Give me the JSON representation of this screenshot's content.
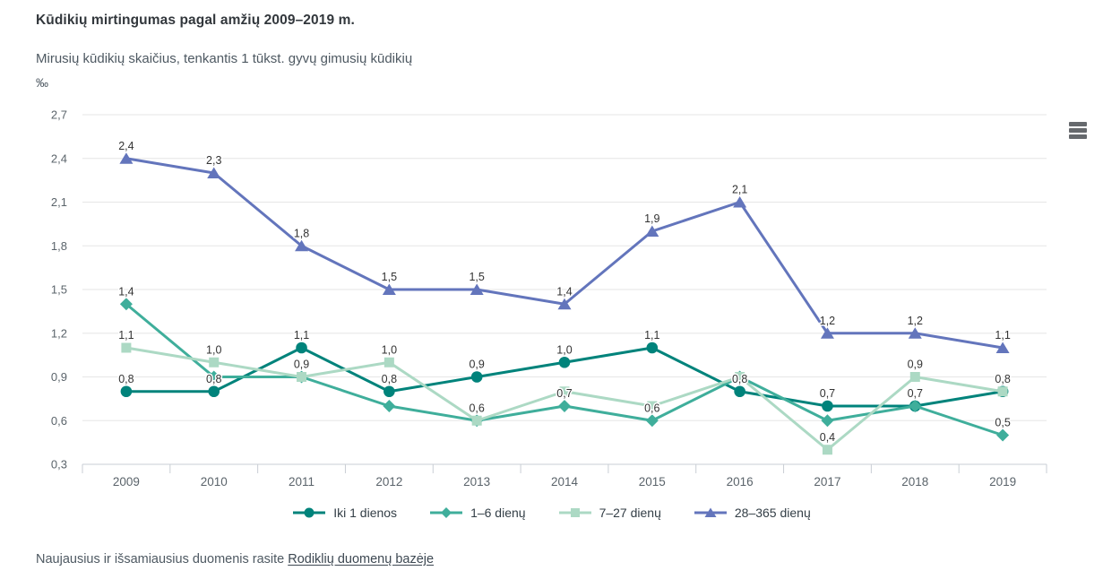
{
  "header": {
    "title": "Kūdikių mirtingumas pagal amžių 2009–2019 m.",
    "subtitle": "Mirusių kūdikių skaičius, tenkantis 1 tūkst. gyvų gimusių kūdikių",
    "unit": "‰"
  },
  "footer": {
    "text": "Naujausius ir išsamiausius duomenis rasite",
    "link_label": "Rodiklių duomenų bazėje"
  },
  "colors": {
    "grid": "#e6e6e6",
    "axis": "#c9ced4",
    "tick_text": "#5b646b",
    "data_label": "#333333",
    "title": "#32373c",
    "subtitle": "#4e5962"
  },
  "chart_data": {
    "type": "line",
    "title": "Kūdikių mirtingumas pagal amžių 2009–2019 m.",
    "subtitle": "Mirusių kūdikių skaičius, tenkantis 1 tūkst. gyvų gimusių kūdikių",
    "ylabel": "‰",
    "xlabel": "",
    "grid": true,
    "legend_position": "bottom",
    "ylim": [
      0.3,
      2.7
    ],
    "ytick_step": 0.3,
    "ytick_labels": [
      "0,3",
      "0,6",
      "0,9",
      "1,2",
      "1,5",
      "1,8",
      "2,1",
      "2,4",
      "2,7"
    ],
    "categories": [
      "2009",
      "2010",
      "2011",
      "2012",
      "2013",
      "2014",
      "2015",
      "2016",
      "2017",
      "2018",
      "2019"
    ],
    "series": [
      {
        "name": "Iki 1 dienos",
        "marker": "circle",
        "color": "#00837B",
        "values": [
          0.8,
          0.8,
          1.1,
          0.8,
          0.9,
          1.0,
          1.1,
          0.8,
          0.7,
          0.7,
          0.8
        ],
        "labels": [
          "0,8",
          "0,8",
          "1,1",
          "0,8",
          "0,9",
          "1,0",
          "1,1",
          "0,8",
          "0,7",
          null,
          null
        ]
      },
      {
        "name": "1–6 dienų",
        "marker": "diamond",
        "color": "#3FAE9B",
        "values": [
          1.4,
          0.9,
          0.9,
          0.7,
          0.6,
          0.7,
          0.6,
          0.9,
          0.6,
          0.7,
          0.5
        ],
        "labels": [
          "1,4",
          null,
          null,
          null,
          null,
          "0,7",
          "0,6",
          null,
          null,
          "0,7",
          "0,5"
        ]
      },
      {
        "name": "7–27 dienų",
        "marker": "square",
        "color": "#ACD9C4",
        "values": [
          1.1,
          1.0,
          0.9,
          1.0,
          0.6,
          0.8,
          0.7,
          0.9,
          0.4,
          0.9,
          0.8
        ],
        "labels": [
          "1,1",
          "1,0",
          "0,9",
          "1,0",
          "0,6",
          null,
          null,
          null,
          "0,4",
          "0,9",
          "0,8"
        ]
      },
      {
        "name": "28–365 dienų",
        "marker": "triangle",
        "color": "#6375BC",
        "values": [
          2.4,
          2.3,
          1.8,
          1.5,
          1.5,
          1.4,
          1.9,
          2.1,
          1.2,
          1.2,
          1.1
        ],
        "labels": [
          "2,4",
          "2,3",
          "1,8",
          "1,5",
          "1,5",
          "1,4",
          "1,9",
          "2,1",
          "1,2",
          "1,2",
          "1,1"
        ]
      }
    ]
  }
}
